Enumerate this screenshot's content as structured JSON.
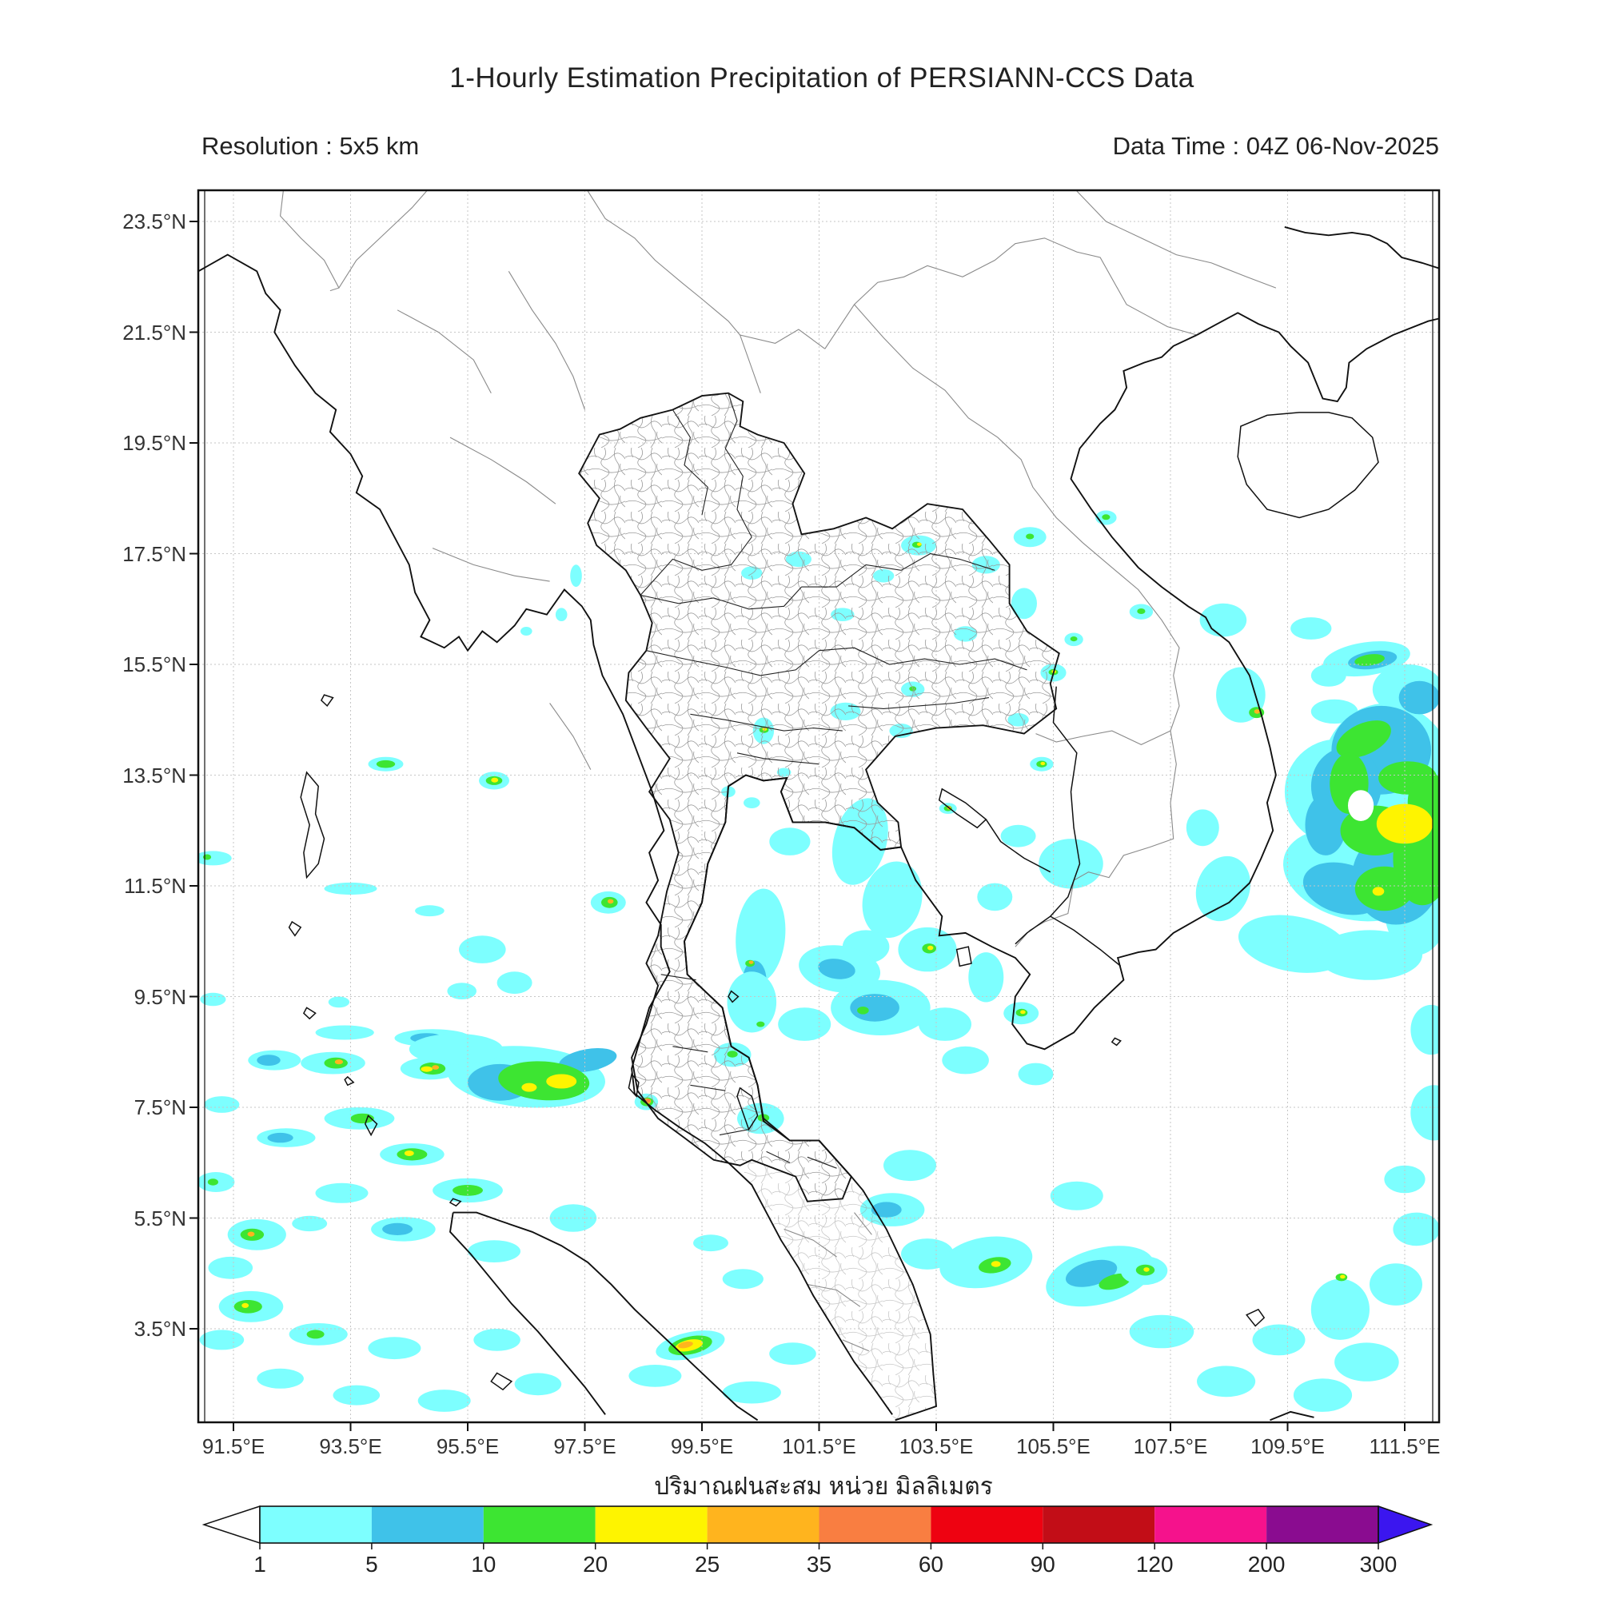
{
  "header": {
    "title": "1-Hourly Estimation Precipitation of PERSIANN-CCS Data",
    "resolution": "Resolution : 5x5 km",
    "data_time": "Data Time : 04Z 06-Nov-2025"
  },
  "map": {
    "x_tick_labels": [
      "91.5°E",
      "93.5°E",
      "95.5°E",
      "97.5°E",
      "99.5°E",
      "101.5°E",
      "103.5°E",
      "105.5°E",
      "107.5°E",
      "109.5°E",
      "111.5°E"
    ],
    "x_tick_values": [
      91.5,
      93.5,
      95.5,
      97.5,
      99.5,
      101.5,
      103.5,
      105.5,
      107.5,
      109.5,
      111.5
    ],
    "y_tick_labels": [
      "23.5°N",
      "21.5°N",
      "19.5°N",
      "17.5°N",
      "15.5°N",
      "13.5°N",
      "11.5°N",
      "9.5°N",
      "7.5°N",
      "5.5°N",
      "3.5°N"
    ],
    "y_tick_values": [
      23.5,
      21.5,
      19.5,
      17.5,
      15.5,
      13.5,
      11.5,
      9.5,
      7.5,
      5.5,
      3.5
    ],
    "grid_color": "#c6c6c6",
    "coast_color": "#111111",
    "border_color": "#8a8a8a"
  },
  "colorbar": {
    "caption": "ปริมาณฝนสะสม หน่วย มิลลิเมตร",
    "tick_labels": [
      "1",
      "5",
      "10",
      "20",
      "25",
      "35",
      "60",
      "90",
      "120",
      "200",
      "300"
    ],
    "segment_colors": [
      "#7dffff",
      "#3fc2e9",
      "#3de532",
      "#fef400",
      "#ffb41e",
      "#f97e41",
      "#ee0211",
      "#c20d17",
      "#f5128c",
      "#8a0c90"
    ],
    "under_arrow_color": "#ffffff",
    "over_arrow_color": "#3b16ef"
  },
  "precipitation_levels_mm": {
    "1": "1-5",
    "2": "5-10",
    "3": "10-20",
    "4": "20-25",
    "5": "25-35",
    "6": "35-60"
  },
  "precipitation_cells": [
    [
      91.15,
      12.0,
      0.32,
      0.13,
      0,
      1
    ],
    [
      91.05,
      12.02,
      0.07,
      0.05,
      0,
      3
    ],
    [
      93.5,
      11.45,
      0.45,
      0.11,
      0,
      1
    ],
    [
      94.85,
      11.05,
      0.25,
      0.1,
      0,
      1
    ],
    [
      95.75,
      10.35,
      0.4,
      0.25,
      0,
      1
    ],
    [
      96.3,
      9.75,
      0.3,
      0.2,
      0,
      1
    ],
    [
      95.4,
      9.6,
      0.25,
      0.15,
      0,
      1
    ],
    [
      93.3,
      9.4,
      0.18,
      0.1,
      0,
      1
    ],
    [
      91.15,
      9.45,
      0.22,
      0.12,
      0,
      1
    ],
    [
      94.9,
      8.75,
      0.65,
      0.16,
      0,
      1
    ],
    [
      94.8,
      8.75,
      0.28,
      0.09,
      0,
      2
    ],
    [
      93.4,
      8.85,
      0.5,
      0.13,
      0,
      1
    ],
    [
      92.2,
      8.35,
      0.45,
      0.18,
      0,
      1
    ],
    [
      92.1,
      8.35,
      0.2,
      0.1,
      0,
      2
    ],
    [
      93.2,
      8.3,
      0.55,
      0.2,
      0,
      1
    ],
    [
      93.25,
      8.3,
      0.2,
      0.1,
      0,
      3
    ],
    [
      93.3,
      8.32,
      0.07,
      0.045,
      0,
      5
    ],
    [
      94.85,
      8.2,
      0.5,
      0.2,
      0,
      1
    ],
    [
      94.9,
      8.2,
      0.22,
      0.11,
      0,
      3
    ],
    [
      94.8,
      8.19,
      0.1,
      0.05,
      0,
      4
    ],
    [
      94.95,
      8.22,
      0.06,
      0.04,
      0,
      5
    ],
    [
      91.3,
      7.55,
      0.3,
      0.15,
      0,
      1
    ],
    [
      92.4,
      6.95,
      0.5,
      0.17,
      0,
      1
    ],
    [
      92.3,
      6.95,
      0.22,
      0.09,
      0,
      2
    ],
    [
      93.65,
      7.3,
      0.6,
      0.2,
      0,
      1
    ],
    [
      93.7,
      7.3,
      0.2,
      0.09,
      0,
      3
    ],
    [
      94.55,
      6.65,
      0.55,
      0.2,
      0,
      1
    ],
    [
      94.55,
      6.65,
      0.26,
      0.11,
      0,
      3
    ],
    [
      94.5,
      6.67,
      0.08,
      0.05,
      0,
      4
    ],
    [
      91.2,
      6.15,
      0.32,
      0.18,
      0,
      1
    ],
    [
      91.15,
      6.15,
      0.09,
      0.06,
      0,
      3
    ],
    [
      93.35,
      5.95,
      0.45,
      0.18,
      0,
      1
    ],
    [
      95.5,
      6.0,
      0.6,
      0.22,
      0,
      1
    ],
    [
      95.5,
      6.0,
      0.26,
      0.1,
      0,
      3
    ],
    [
      92.8,
      5.4,
      0.3,
      0.14,
      0,
      1
    ],
    [
      94.4,
      5.3,
      0.55,
      0.22,
      0,
      1
    ],
    [
      94.3,
      5.3,
      0.26,
      0.11,
      0,
      2
    ],
    [
      91.9,
      5.2,
      0.5,
      0.28,
      0,
      1
    ],
    [
      91.82,
      5.2,
      0.2,
      0.11,
      0,
      3
    ],
    [
      91.8,
      5.21,
      0.06,
      0.045,
      0,
      5
    ],
    [
      91.45,
      4.6,
      0.38,
      0.2,
      0,
      1
    ],
    [
      95.95,
      4.9,
      0.45,
      0.2,
      0,
      1
    ],
    [
      97.3,
      5.5,
      0.4,
      0.25,
      0,
      1
    ],
    [
      91.8,
      3.9,
      0.55,
      0.28,
      0,
      1
    ],
    [
      91.75,
      3.9,
      0.24,
      0.12,
      0,
      3
    ],
    [
      91.7,
      3.92,
      0.06,
      0.045,
      0,
      4
    ],
    [
      91.3,
      3.3,
      0.38,
      0.18,
      0,
      1
    ],
    [
      92.95,
      3.4,
      0.5,
      0.2,
      0,
      1
    ],
    [
      92.9,
      3.4,
      0.15,
      0.08,
      0,
      3
    ],
    [
      94.25,
      3.15,
      0.45,
      0.2,
      0,
      1
    ],
    [
      96.0,
      3.3,
      0.4,
      0.2,
      0,
      1
    ],
    [
      92.3,
      2.6,
      0.4,
      0.18,
      0,
      1
    ],
    [
      93.6,
      2.3,
      0.4,
      0.18,
      0,
      1
    ],
    [
      95.1,
      2.2,
      0.45,
      0.2,
      0,
      1
    ],
    [
      96.7,
      2.5,
      0.4,
      0.2,
      0,
      1
    ],
    [
      96.5,
      8.05,
      1.35,
      0.55,
      4,
      1
    ],
    [
      95.3,
      8.55,
      0.8,
      0.28,
      0,
      1
    ],
    [
      96.05,
      7.95,
      0.55,
      0.33,
      0,
      2
    ],
    [
      97.55,
      8.35,
      0.5,
      0.2,
      -10,
      2
    ],
    [
      96.8,
      7.98,
      0.78,
      0.35,
      4,
      3
    ],
    [
      97.1,
      7.97,
      0.26,
      0.13,
      0,
      4
    ],
    [
      96.55,
      7.86,
      0.13,
      0.08,
      0,
      4
    ],
    [
      98.55,
      7.6,
      0.2,
      0.15,
      0,
      1
    ],
    [
      98.56,
      7.6,
      0.11,
      0.08,
      0,
      3
    ],
    [
      98.57,
      7.61,
      0.06,
      0.05,
      0,
      5
    ],
    [
      98.58,
      7.62,
      0.035,
      0.03,
      0,
      6
    ],
    [
      97.9,
      11.2,
      0.3,
      0.2,
      0,
      1
    ],
    [
      97.92,
      11.2,
      0.14,
      0.1,
      0,
      3
    ],
    [
      97.94,
      11.22,
      0.05,
      0.04,
      0,
      5
    ],
    [
      95.95,
      13.4,
      0.26,
      0.16,
      0,
      1
    ],
    [
      95.95,
      13.4,
      0.14,
      0.08,
      0,
      3
    ],
    [
      95.96,
      13.41,
      0.06,
      0.045,
      0,
      4
    ],
    [
      94.1,
      13.7,
      0.3,
      0.13,
      0,
      1
    ],
    [
      94.1,
      13.7,
      0.16,
      0.07,
      0,
      3
    ],
    [
      97.35,
      17.1,
      0.1,
      0.2,
      0,
      1
    ],
    [
      97.1,
      16.4,
      0.1,
      0.12,
      0,
      1
    ],
    [
      96.5,
      16.1,
      0.1,
      0.08,
      0,
      1
    ],
    [
      99.3,
      3.2,
      0.6,
      0.24,
      -12,
      1
    ],
    [
      99.3,
      3.2,
      0.38,
      0.16,
      -12,
      3
    ],
    [
      99.28,
      3.2,
      0.24,
      0.1,
      -12,
      4
    ],
    [
      99.22,
      3.21,
      0.13,
      0.055,
      -12,
      5
    ],
    [
      98.7,
      2.65,
      0.45,
      0.2,
      0,
      1
    ],
    [
      100.35,
      2.35,
      0.5,
      0.2,
      0,
      1
    ],
    [
      101.05,
      3.05,
      0.4,
      0.2,
      0,
      1
    ],
    [
      100.2,
      4.4,
      0.35,
      0.18,
      0,
      1
    ],
    [
      99.65,
      5.05,
      0.3,
      0.15,
      0,
      1
    ],
    [
      100.35,
      17.15,
      0.18,
      0.12,
      0,
      1
    ],
    [
      101.15,
      17.4,
      0.22,
      0.14,
      0,
      1
    ],
    [
      101.9,
      16.4,
      0.2,
      0.12,
      0,
      1
    ],
    [
      102.6,
      17.1,
      0.18,
      0.12,
      0,
      1
    ],
    [
      103.2,
      17.65,
      0.3,
      0.18,
      0,
      1
    ],
    [
      103.17,
      17.66,
      0.08,
      0.055,
      0,
      3
    ],
    [
      103.21,
      17.67,
      0.04,
      0.03,
      0,
      4
    ],
    [
      104.35,
      17.3,
      0.24,
      0.16,
      0,
      1
    ],
    [
      105.1,
      17.8,
      0.28,
      0.18,
      0,
      1
    ],
    [
      105.1,
      17.81,
      0.07,
      0.05,
      0,
      3
    ],
    [
      105.0,
      16.6,
      0.22,
      0.28,
      0,
      1
    ],
    [
      104.0,
      16.05,
      0.2,
      0.14,
      0,
      1
    ],
    [
      105.5,
      15.35,
      0.22,
      0.16,
      0,
      1
    ],
    [
      105.5,
      15.36,
      0.08,
      0.055,
      0,
      3
    ],
    [
      105.51,
      15.37,
      0.04,
      0.03,
      0,
      4
    ],
    [
      103.1,
      15.05,
      0.2,
      0.14,
      0,
      1
    ],
    [
      103.1,
      15.06,
      0.06,
      0.045,
      0,
      3
    ],
    [
      101.95,
      14.65,
      0.26,
      0.16,
      0,
      1
    ],
    [
      102.9,
      14.3,
      0.2,
      0.13,
      0,
      1
    ],
    [
      104.9,
      14.5,
      0.18,
      0.12,
      0,
      1
    ],
    [
      106.4,
      18.15,
      0.18,
      0.13,
      0,
      1
    ],
    [
      106.4,
      18.16,
      0.07,
      0.05,
      0,
      3
    ],
    [
      107.0,
      16.45,
      0.2,
      0.14,
      0,
      1
    ],
    [
      107.0,
      16.46,
      0.07,
      0.05,
      0,
      3
    ],
    [
      105.85,
      15.95,
      0.16,
      0.12,
      0,
      1
    ],
    [
      105.85,
      15.96,
      0.06,
      0.045,
      0,
      3
    ],
    [
      100.55,
      14.3,
      0.18,
      0.24,
      0,
      1
    ],
    [
      100.56,
      14.32,
      0.08,
      0.06,
      0,
      3
    ],
    [
      100.57,
      14.33,
      0.04,
      0.03,
      0,
      4
    ],
    [
      99.95,
      13.2,
      0.12,
      0.1,
      0,
      1
    ],
    [
      100.35,
      13.0,
      0.14,
      0.1,
      0,
      1
    ],
    [
      100.9,
      13.55,
      0.12,
      0.08,
      0,
      1
    ],
    [
      101.0,
      12.3,
      0.35,
      0.25,
      0,
      1
    ],
    [
      102.2,
      12.3,
      0.45,
      0.8,
      15,
      1
    ],
    [
      102.75,
      11.25,
      0.5,
      0.7,
      15,
      1
    ],
    [
      102.3,
      10.4,
      0.4,
      0.3,
      0,
      1
    ],
    [
      103.35,
      10.35,
      0.5,
      0.4,
      0,
      1
    ],
    [
      103.38,
      10.37,
      0.12,
      0.09,
      0,
      3
    ],
    [
      103.4,
      10.38,
      0.05,
      0.04,
      0,
      4
    ],
    [
      101.85,
      10.0,
      0.7,
      0.42,
      8,
      1
    ],
    [
      101.8,
      10.0,
      0.32,
      0.18,
      8,
      2
    ],
    [
      102.55,
      9.3,
      0.85,
      0.5,
      0,
      1
    ],
    [
      102.45,
      9.3,
      0.42,
      0.25,
      0,
      2
    ],
    [
      102.25,
      9.25,
      0.1,
      0.07,
      0,
      3
    ],
    [
      103.65,
      9.0,
      0.45,
      0.3,
      0,
      1
    ],
    [
      104.35,
      9.85,
      0.3,
      0.45,
      0,
      1
    ],
    [
      104.0,
      8.35,
      0.4,
      0.25,
      0,
      1
    ],
    [
      105.2,
      8.1,
      0.3,
      0.2,
      0,
      1
    ],
    [
      104.95,
      9.2,
      0.3,
      0.2,
      0,
      1
    ],
    [
      104.96,
      9.21,
      0.1,
      0.07,
      0,
      3
    ],
    [
      104.98,
      9.22,
      0.045,
      0.035,
      0,
      4
    ],
    [
      105.8,
      11.9,
      0.55,
      0.45,
      0,
      1
    ],
    [
      104.5,
      11.3,
      0.3,
      0.25,
      0,
      1
    ],
    [
      104.9,
      12.4,
      0.3,
      0.2,
      0,
      1
    ],
    [
      105.3,
      13.7,
      0.2,
      0.13,
      0,
      1
    ],
    [
      105.3,
      13.7,
      0.09,
      0.06,
      0,
      3
    ],
    [
      105.32,
      13.71,
      0.04,
      0.03,
      0,
      4
    ],
    [
      103.7,
      12.9,
      0.15,
      0.1,
      0,
      1
    ],
    [
      103.7,
      12.9,
      0.07,
      0.05,
      0,
      3
    ],
    [
      103.72,
      12.91,
      0.035,
      0.03,
      0,
      5
    ],
    [
      100.5,
      10.6,
      0.42,
      0.85,
      5,
      1
    ],
    [
      100.4,
      9.8,
      0.2,
      0.35,
      0,
      2
    ],
    [
      100.35,
      9.4,
      0.42,
      0.55,
      0,
      1
    ],
    [
      100.32,
      10.1,
      0.08,
      0.06,
      0,
      3
    ],
    [
      100.34,
      10.12,
      0.04,
      0.03,
      0,
      5
    ],
    [
      100.5,
      9.0,
      0.07,
      0.05,
      0,
      3
    ],
    [
      101.25,
      9.0,
      0.45,
      0.3,
      0,
      1
    ],
    [
      100.02,
      8.45,
      0.32,
      0.22,
      0,
      1
    ],
    [
      100.02,
      8.46,
      0.09,
      0.06,
      0,
      3
    ],
    [
      100.5,
      7.3,
      0.4,
      0.28,
      0,
      1
    ],
    [
      100.55,
      7.31,
      0.1,
      0.07,
      0,
      3
    ],
    [
      103.05,
      6.45,
      0.45,
      0.28,
      0,
      1
    ],
    [
      102.75,
      5.65,
      0.55,
      0.3,
      0,
      1
    ],
    [
      102.65,
      5.65,
      0.26,
      0.14,
      0,
      2
    ],
    [
      103.35,
      4.85,
      0.45,
      0.28,
      0,
      1
    ],
    [
      104.35,
      4.7,
      0.8,
      0.45,
      -10,
      1
    ],
    [
      104.5,
      4.65,
      0.28,
      0.14,
      -10,
      3
    ],
    [
      104.52,
      4.67,
      0.08,
      0.055,
      0,
      4
    ],
    [
      106.3,
      4.45,
      0.95,
      0.5,
      -15,
      1
    ],
    [
      106.15,
      4.5,
      0.45,
      0.22,
      -15,
      2
    ],
    [
      106.55,
      4.35,
      0.28,
      0.13,
      -15,
      3
    ],
    [
      107.05,
      4.55,
      0.4,
      0.26,
      0,
      1
    ],
    [
      107.07,
      4.56,
      0.16,
      0.1,
      0,
      3
    ],
    [
      107.09,
      4.57,
      0.05,
      0.04,
      0,
      4
    ],
    [
      105.9,
      5.9,
      0.45,
      0.26,
      0,
      1
    ],
    [
      107.35,
      3.45,
      0.55,
      0.3,
      0,
      1
    ],
    [
      108.45,
      2.55,
      0.5,
      0.28,
      0,
      1
    ],
    [
      109.35,
      3.3,
      0.45,
      0.28,
      0,
      1
    ],
    [
      110.4,
      3.85,
      0.5,
      0.55,
      0,
      1
    ],
    [
      110.42,
      4.43,
      0.1,
      0.07,
      0,
      3
    ],
    [
      110.44,
      4.44,
      0.045,
      0.035,
      0,
      4
    ],
    [
      111.35,
      4.3,
      0.45,
      0.38,
      0,
      1
    ],
    [
      110.85,
      2.9,
      0.55,
      0.35,
      0,
      1
    ],
    [
      110.1,
      2.3,
      0.5,
      0.3,
      0,
      1
    ],
    [
      111.7,
      5.3,
      0.4,
      0.3,
      0,
      1
    ],
    [
      111.5,
      6.2,
      0.35,
      0.25,
      0,
      1
    ],
    [
      112.0,
      7.4,
      0.4,
      0.5,
      0,
      1
    ],
    [
      111.95,
      8.9,
      0.35,
      0.45,
      0,
      1
    ],
    [
      110.85,
      15.6,
      0.75,
      0.3,
      -8,
      1
    ],
    [
      111.55,
      15.05,
      0.6,
      0.45,
      0,
      1
    ],
    [
      110.3,
      14.65,
      0.4,
      0.22,
      0,
      1
    ],
    [
      111.2,
      13.6,
      1.1,
      1.2,
      0,
      1
    ],
    [
      110.35,
      13.2,
      0.9,
      0.95,
      0,
      1
    ],
    [
      110.6,
      11.7,
      1.2,
      0.8,
      15,
      1
    ],
    [
      111.7,
      11.1,
      0.55,
      0.85,
      0,
      1
    ],
    [
      109.6,
      10.45,
      0.95,
      0.5,
      10,
      1
    ],
    [
      110.9,
      10.25,
      0.9,
      0.45,
      0,
      1
    ],
    [
      108.4,
      11.45,
      0.45,
      0.6,
      20,
      1
    ],
    [
      108.05,
      12.55,
      0.28,
      0.33,
      0,
      1
    ],
    [
      108.7,
      14.95,
      0.42,
      0.5,
      0,
      1
    ],
    [
      108.4,
      16.3,
      0.4,
      0.3,
      0,
      1
    ],
    [
      109.9,
      16.15,
      0.35,
      0.2,
      0,
      1
    ],
    [
      110.2,
      15.3,
      0.3,
      0.2,
      0,
      1
    ],
    [
      110.95,
      15.58,
      0.42,
      0.16,
      -8,
      2
    ],
    [
      111.1,
      13.95,
      0.85,
      0.8,
      0,
      2
    ],
    [
      110.5,
      13.3,
      0.6,
      0.7,
      0,
      2
    ],
    [
      111.35,
      11.65,
      0.75,
      0.85,
      0,
      2
    ],
    [
      110.45,
      11.45,
      0.7,
      0.45,
      15,
      2
    ],
    [
      111.75,
      14.9,
      0.35,
      0.3,
      0,
      2
    ],
    [
      110.15,
      12.6,
      0.35,
      0.55,
      0,
      2
    ],
    [
      110.9,
      15.58,
      0.26,
      0.1,
      -8,
      3
    ],
    [
      110.8,
      14.15,
      0.5,
      0.28,
      -25,
      3
    ],
    [
      110.55,
      13.35,
      0.33,
      0.55,
      0,
      3
    ],
    [
      111.55,
      13.45,
      0.5,
      0.3,
      0,
      3
    ],
    [
      111.9,
      13.0,
      0.35,
      0.55,
      0,
      3
    ],
    [
      111.8,
      12.0,
      0.5,
      0.85,
      0,
      3
    ],
    [
      111.15,
      11.45,
      0.5,
      0.4,
      0,
      3
    ],
    [
      111.0,
      12.5,
      0.6,
      0.45,
      0,
      3
    ],
    [
      110.75,
      12.95,
      0.22,
      0.28,
      0,
      0
    ],
    [
      111.5,
      12.62,
      0.48,
      0.36,
      0,
      4
    ],
    [
      111.05,
      11.4,
      0.1,
      0.08,
      0,
      4
    ],
    [
      108.97,
      14.63,
      0.13,
      0.1,
      0,
      3
    ],
    [
      108.98,
      14.65,
      0.05,
      0.04,
      0,
      5
    ]
  ]
}
